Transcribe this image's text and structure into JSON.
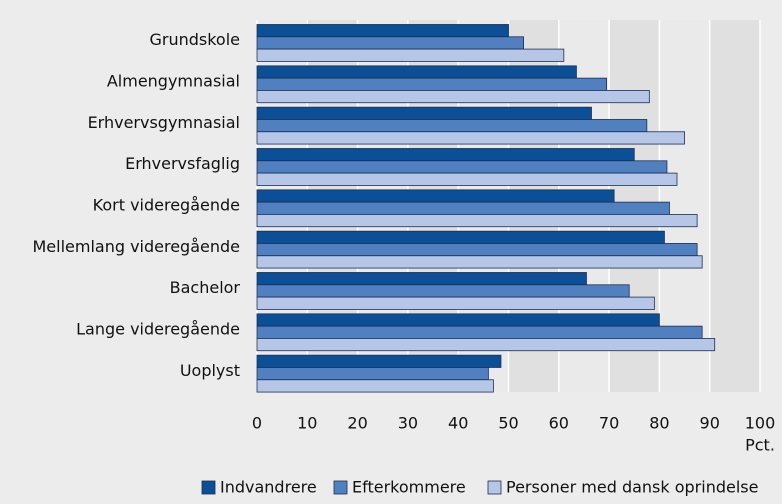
{
  "chart_data": {
    "type": "hbar",
    "categories": [
      "Grundskole",
      "Almengymnasial",
      "Erhvervsgymnasial",
      "Erhvervsfaglig",
      "Kort videregående",
      "Mellemlang videregående",
      "Bachelor",
      "Lange videregående",
      "Uoplyst"
    ],
    "series": [
      {
        "name": "Indvandrere",
        "color": "#0b4f97",
        "values": [
          50,
          63.5,
          66.5,
          75,
          71,
          81,
          65.5,
          80,
          48.5
        ]
      },
      {
        "name": "Efterkommere",
        "color": "#5080c0",
        "values": [
          53,
          69.5,
          77.5,
          81.5,
          82,
          87.5,
          74,
          88.5,
          46
        ]
      },
      {
        "name": "Personer med dansk oprindelse",
        "color": "#b5c6e7",
        "values": [
          61,
          78,
          85,
          83.5,
          87.5,
          88.5,
          79,
          91,
          47
        ]
      }
    ],
    "xlim": [
      0,
      100
    ],
    "xticks": [
      0,
      10,
      20,
      30,
      40,
      50,
      60,
      70,
      80,
      90,
      100
    ],
    "x_label": "Pct.",
    "grid": true,
    "legend": "bottom"
  }
}
